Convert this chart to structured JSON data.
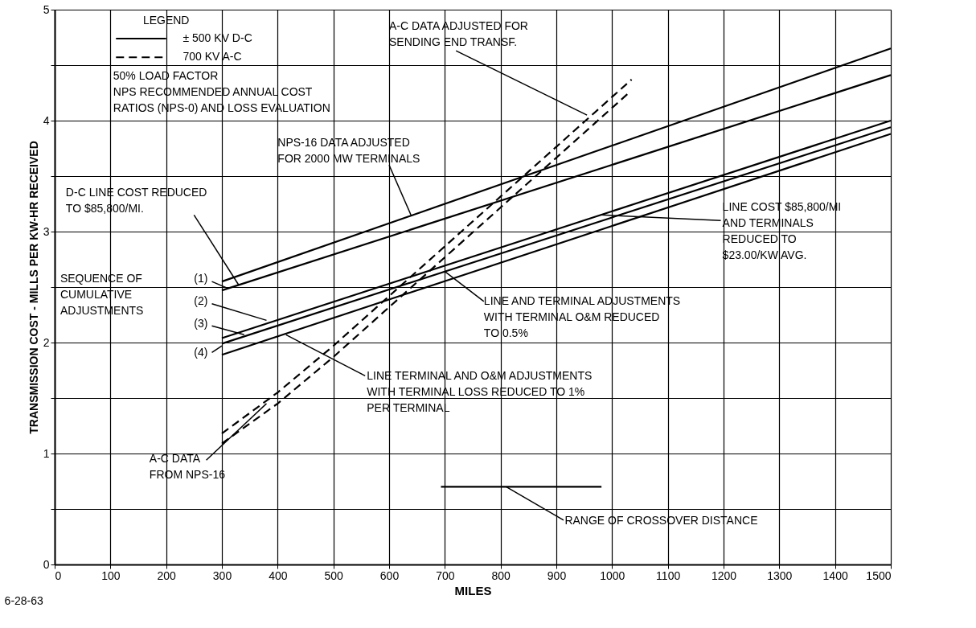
{
  "chart_data": {
    "type": "line",
    "xlabel": "MILES",
    "ylabel": "TRANSMISSION COST - MILLS PER KW-HR RECEIVED",
    "legend_title": "LEGEND",
    "legend": "top left",
    "grid": true,
    "xlim": [
      0,
      1500
    ],
    "xticks": [
      0,
      100,
      200,
      300,
      400,
      500,
      600,
      700,
      800,
      900,
      1000,
      1100,
      1200,
      1300,
      1400,
      1500
    ],
    "ylim": [
      0,
      5
    ],
    "yticks": [
      0,
      {
        "value": 0.5,
        "label": null
      },
      1,
      {
        "value": 1.5,
        "label": null
      },
      2,
      {
        "value": 2.5,
        "label": null
      },
      3,
      {
        "value": 3.5,
        "label": null
      },
      4,
      {
        "value": 4.5,
        "label": null
      },
      5
    ],
    "series": [
      {
        "name": "± 500 KV D-C",
        "color": "#000000",
        "line_style": "solid",
        "x": [
          300,
          1500
        ],
        "values": [
          2.55,
          4.65
        ]
      },
      {
        "color": "#000000",
        "line_style": "solid",
        "x": [
          300,
          1500
        ],
        "values": [
          2.47,
          4.41
        ]
      },
      {
        "color": "#000000",
        "line_style": "solid",
        "x": [
          300,
          1500
        ],
        "values": [
          2.04,
          4.0
        ]
      },
      {
        "color": "#000000",
        "line_style": "solid",
        "x": [
          300,
          1500
        ],
        "values": [
          1.99,
          3.94
        ]
      },
      {
        "color": "#000000",
        "line_style": "solid",
        "x": [
          300,
          1500
        ],
        "values": [
          1.89,
          3.88
        ]
      },
      {
        "name": "700 KV A-C",
        "color": "#000000",
        "line_style": "dashed",
        "x": [
          300,
          400,
          500,
          1035
        ],
        "values": [
          1.18,
          1.55,
          1.97,
          4.37
        ]
      },
      {
        "color": "#000000",
        "line_style": "dashed",
        "x": [
          300,
          400,
          500,
          1030
        ],
        "values": [
          1.09,
          1.45,
          1.87,
          4.25
        ]
      },
      {
        "color": "#000000",
        "line_style": "solid",
        "x": [
          693,
          981
        ],
        "values": [
          0.7,
          0.7
        ]
      }
    ],
    "annotations": [
      {
        "text": "A-C DATA ADJUSTED FOR\nSENDING END TRANSF.",
        "x": 955,
        "y": 4.05
      },
      "50% LOAD FACTOR\nNPS RECOMMENDED ANNUAL COST\nRATIOS (NPS-0) AND LOSS EVALUATION",
      {
        "text": "NPS-16 DATA ADJUSTED\nFOR 2000 MW TERMINALS",
        "x": 640,
        "y": 3.14
      },
      {
        "text": "D-C LINE COST REDUCED\nTO $85,800/MI.",
        "x": 330,
        "y": 2.52
      },
      "SEQUENCE OF\nCUMULATIVE\nADJUSTMENTS",
      {
        "text": "(1)",
        "x": 310,
        "y": 2.49
      },
      {
        "text": "(2)",
        "x": 380,
        "y": 2.2
      },
      {
        "text": "(3)",
        "x": 340,
        "y": 2.07
      },
      {
        "text": "(4)",
        "x": 300,
        "y": 1.97
      },
      {
        "text": "LINE COST $85,800/MI\nAND TERMINALS\nREDUCED TO\n$23.00/KW AVG.",
        "x": 980,
        "y": 3.15
      },
      {
        "text": "LINE AND TERMINAL ADJUSTMENTS\nWITH TERMINAL O&M REDUCED\nTO 0.5%",
        "x": 700,
        "y": 2.64
      },
      {
        "text": "LINE TERMINAL AND O&M ADJUSTMENTS\nWITH TERMINAL LOSS REDUCED TO 1%\nPER TERMINAL",
        "x": 415,
        "y": 2.07
      },
      {
        "text": "A-C DATA\nFROM NPS-16",
        "x": 380,
        "y": 1.45
      },
      {
        "text": "RANGE OF CROSSOVER DISTANCE",
        "x": 810,
        "y": 0.7
      },
      "6-28-63"
    ]
  }
}
